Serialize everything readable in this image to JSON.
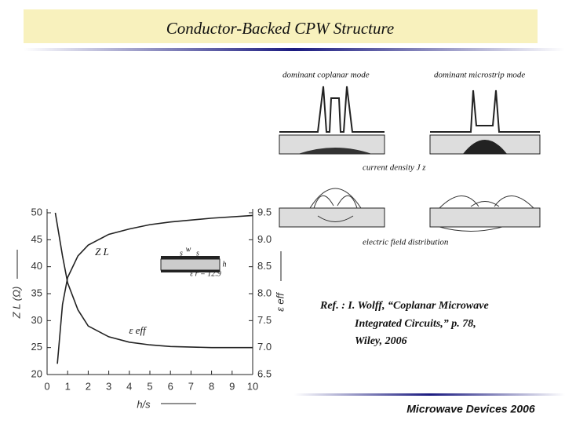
{
  "slide_title": "Conductor-Backed CPW Structure",
  "diagram": {
    "coplanar_label": "dominant coplanar mode",
    "microstrip_label": "dominant microstrip mode",
    "current_label": "current density J z",
    "field_label": "electric field distribution"
  },
  "reference": [
    "Ref. : I. Wolff, “Coplanar Microwave",
    "Integrated Circuits,” p. 78,",
    "Wiley, 2006"
  ],
  "footer": "Microwave Devices 2006",
  "chart_data": {
    "type": "line",
    "x_label": "h/s",
    "y_label": "Z L (Ω)",
    "y2_label": "ε eff",
    "annotations": [
      "Z L",
      "ε eff",
      "w",
      "s",
      "s",
      "h",
      "ε r = 12.9"
    ],
    "xlim": [
      0,
      10
    ],
    "xticks": [
      0,
      1,
      2,
      3,
      4,
      5,
      6,
      7,
      8,
      9,
      10
    ],
    "ylim": [
      20,
      50
    ],
    "yticks": [
      20,
      25,
      30,
      35,
      40,
      45,
      50
    ],
    "y2lim": [
      6.5,
      9.5
    ],
    "y2ticks": [
      6.5,
      {
        "value": 7,
        "label": "7.0"
      },
      7.5,
      {
        "value": 8,
        "label": "8.0"
      },
      8.5,
      {
        "value": 9,
        "label": "9.0"
      },
      9.5
    ],
    "series": [
      {
        "name": "Z L",
        "color": "#222222",
        "x": [
          0.5,
          0.75,
          1,
          1.5,
          2,
          3,
          4,
          5,
          6,
          8,
          10
        ],
        "values": [
          22,
          33,
          38,
          42,
          44,
          46,
          47,
          47.8,
          48.3,
          49,
          49.5
        ]
      },
      {
        "name": "ε eff",
        "color": "#222222",
        "axis": "y2",
        "x": [
          0.4,
          0.75,
          1,
          1.5,
          2,
          3,
          4,
          5,
          6,
          8,
          10
        ],
        "values": [
          9.5,
          8.7,
          8.2,
          7.7,
          7.4,
          7.2,
          7.1,
          7.05,
          7.02,
          7,
          7
        ]
      }
    ]
  }
}
